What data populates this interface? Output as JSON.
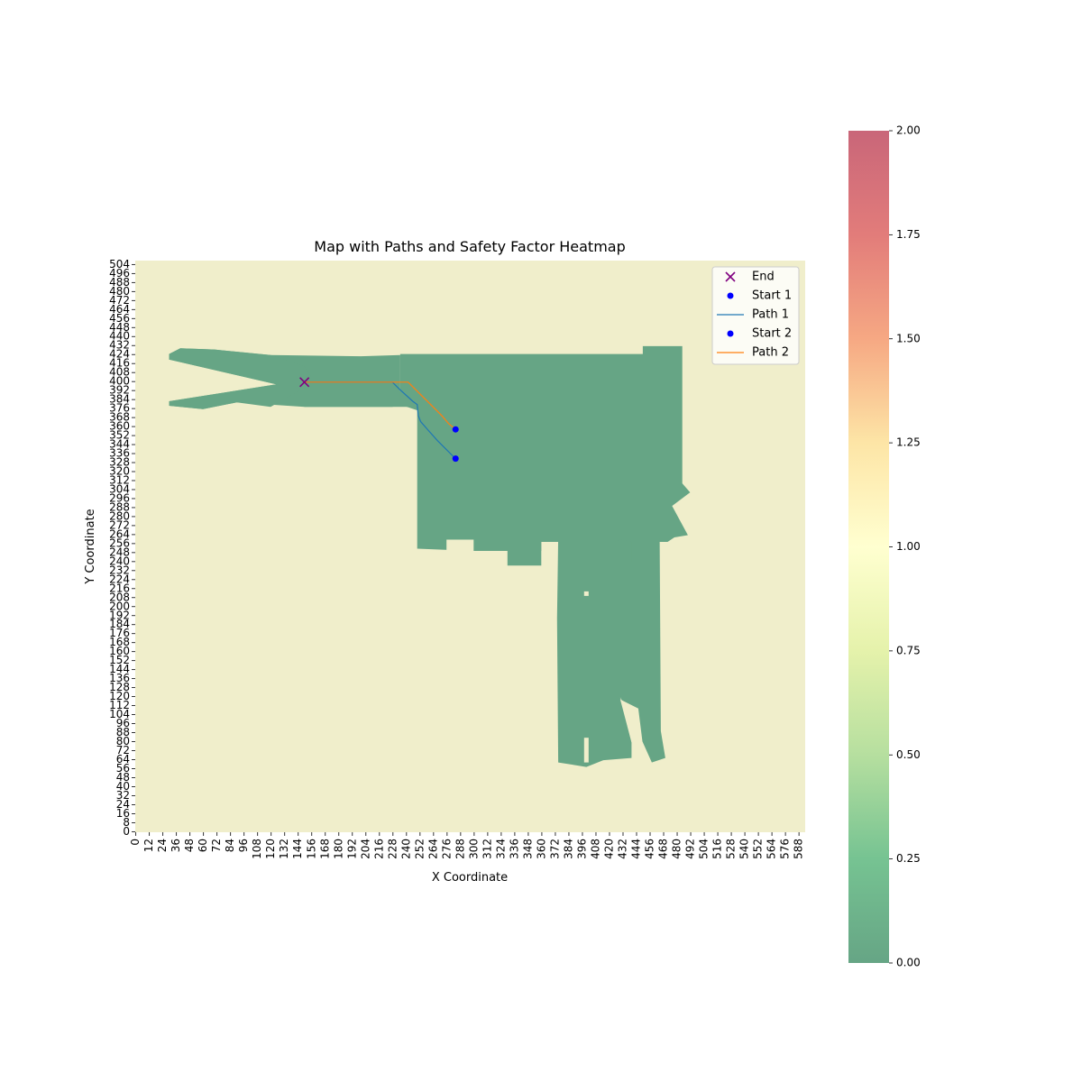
{
  "chart_data": {
    "type": "heatmap",
    "title": "Map with Paths and Safety Factor Heatmap",
    "xlabel": "X Coordinate",
    "ylabel": "Y Coordinate",
    "xlim": [
      0,
      594
    ],
    "ylim": [
      0,
      508
    ],
    "x_ticks": [
      0,
      12,
      24,
      36,
      48,
      60,
      72,
      84,
      96,
      108,
      120,
      132,
      144,
      156,
      168,
      180,
      192,
      204,
      216,
      228,
      240,
      252,
      264,
      276,
      288,
      300,
      312,
      324,
      336,
      348,
      360,
      372,
      384,
      396,
      408,
      420,
      432,
      444,
      456,
      468,
      480,
      492,
      504,
      516,
      528,
      540,
      552,
      564,
      576,
      588
    ],
    "y_ticks": [
      0,
      8,
      16,
      24,
      32,
      40,
      48,
      56,
      64,
      72,
      80,
      88,
      96,
      104,
      112,
      120,
      128,
      136,
      144,
      152,
      160,
      168,
      176,
      184,
      192,
      200,
      208,
      216,
      224,
      232,
      240,
      248,
      256,
      264,
      272,
      280,
      288,
      296,
      304,
      312,
      320,
      328,
      336,
      344,
      352,
      360,
      368,
      376,
      384,
      392,
      400,
      408,
      416,
      424,
      432,
      440,
      448,
      456,
      464,
      472,
      480,
      488,
      496,
      504
    ],
    "background_value": 1.0,
    "free_space_value": 0.0,
    "colorbar": {
      "min": 0.0,
      "max": 2.0,
      "ticks": [
        "0.00",
        "0.25",
        "0.50",
        "0.75",
        "1.00",
        "1.25",
        "1.50",
        "1.75",
        "2.00"
      ],
      "colors": [
        "#66a585",
        "#76c392",
        "#b6df9f",
        "#e5f2ab",
        "#ffffd0",
        "#fde5a6",
        "#f6a883",
        "#e27c7a",
        "#c96679"
      ]
    },
    "colors": {
      "background": "#f0eecb",
      "free_space": "#66a585",
      "end_marker": "#800080",
      "start_marker": "#0000ff",
      "path1": "#1f77b4",
      "path2": "#ff7f0e"
    },
    "free_space_regions": [
      {
        "polygon": [
          [
            30,
            425
          ],
          [
            40,
            430
          ],
          [
            70,
            429
          ],
          [
            120,
            424
          ],
          [
            200,
            423
          ],
          [
            235,
            424
          ],
          [
            235,
            380
          ],
          [
            228,
            378
          ],
          [
            150,
            378
          ],
          [
            90,
            382
          ],
          [
            60,
            376
          ],
          [
            30,
            379
          ],
          [
            30,
            383
          ],
          [
            125,
            398
          ],
          [
            30,
            420
          ]
        ]
      },
      {
        "polygon": [
          [
            125,
            398
          ],
          [
            30,
            420
          ],
          [
            30,
            425
          ],
          [
            40,
            430
          ],
          [
            70,
            429
          ],
          [
            120,
            424
          ],
          [
            150,
            414
          ],
          [
            156,
            405
          ],
          [
            150,
            395
          ],
          [
            120,
            378
          ],
          [
            90,
            382
          ],
          [
            60,
            376
          ],
          [
            30,
            379
          ],
          [
            30,
            383
          ]
        ]
      },
      {
        "polygon": [
          [
            150,
            392
          ],
          [
            250,
            392
          ],
          [
            250,
            378
          ],
          [
            150,
            378
          ]
        ]
      },
      {
        "polygon": [
          [
            235,
            425
          ],
          [
            485,
            425
          ],
          [
            485,
            432
          ],
          [
            450,
            432
          ],
          [
            450,
            425
          ],
          [
            485,
            425
          ],
          [
            485,
            310
          ],
          [
            492,
            302
          ],
          [
            476,
            290
          ],
          [
            490,
            264
          ],
          [
            478,
            262
          ],
          [
            472,
            258
          ],
          [
            360,
            258
          ],
          [
            360,
            250
          ],
          [
            300,
            250
          ],
          [
            250,
            252
          ],
          [
            250,
            375
          ],
          [
            235,
            380
          ]
        ]
      },
      {
        "polygon": [
          [
            375,
            262
          ],
          [
            465,
            262
          ],
          [
            466,
            90
          ],
          [
            470,
            66
          ],
          [
            458,
            62
          ],
          [
            450,
            80
          ],
          [
            430,
            120
          ],
          [
            440,
            80
          ],
          [
            440,
            66
          ],
          [
            415,
            64
          ],
          [
            400,
            58
          ],
          [
            375,
            62
          ],
          [
            374,
            190
          ]
        ]
      },
      {
        "polygon": [
          [
            330,
            258
          ],
          [
            360,
            258
          ],
          [
            360,
            237
          ],
          [
            330,
            237
          ]
        ]
      },
      {
        "polygon": [
          [
            425,
            258
          ],
          [
            430,
            260
          ],
          [
            440,
            258
          ],
          [
            440,
            240
          ],
          [
            425,
            240
          ]
        ]
      }
    ],
    "holes": [
      {
        "polygon": [
          [
            398,
            62
          ],
          [
            402,
            62
          ],
          [
            402,
            84
          ],
          [
            398,
            84
          ]
        ]
      },
      {
        "polygon": [
          [
            430,
            118
          ],
          [
            440,
            80
          ],
          [
            450,
            78
          ],
          [
            446,
            110
          ]
        ]
      },
      {
        "polygon": [
          [
            398,
            210
          ],
          [
            402,
            210
          ],
          [
            402,
            214
          ],
          [
            398,
            214
          ]
        ]
      },
      {
        "polygon": [
          [
            276,
            250
          ],
          [
            300,
            250
          ],
          [
            300,
            260
          ],
          [
            276,
            260
          ]
        ]
      }
    ],
    "end_point": {
      "x": 150,
      "y": 400,
      "label": "End"
    },
    "series": [
      {
        "name": "Start 1",
        "type": "scatter",
        "points": [
          [
            284,
            332
          ]
        ]
      },
      {
        "name": "Path 1",
        "type": "line",
        "points": [
          [
            150,
            400
          ],
          [
            228,
            400
          ],
          [
            234,
            394
          ],
          [
            246,
            383
          ],
          [
            250,
            380
          ],
          [
            251,
            370
          ],
          [
            253,
            365
          ],
          [
            260,
            357
          ],
          [
            268,
            348
          ],
          [
            276,
            340
          ],
          [
            284,
            332
          ]
        ]
      },
      {
        "name": "Start 2",
        "type": "scatter",
        "points": [
          [
            284,
            358
          ]
        ]
      },
      {
        "name": "Path 2",
        "type": "line",
        "points": [
          [
            150,
            400
          ],
          [
            242,
            400
          ],
          [
            252,
            390
          ],
          [
            262,
            380
          ],
          [
            272,
            370
          ],
          [
            278,
            363
          ],
          [
            284,
            358
          ]
        ]
      }
    ],
    "legend": {
      "placement": "top-right",
      "entries": [
        {
          "label": "End",
          "marker": "x"
        },
        {
          "label": "Start 1",
          "marker": "dot"
        },
        {
          "label": "Path 1",
          "marker": "line"
        },
        {
          "label": "Start 2",
          "marker": "dot"
        },
        {
          "label": "Path 2",
          "marker": "line"
        }
      ]
    }
  }
}
